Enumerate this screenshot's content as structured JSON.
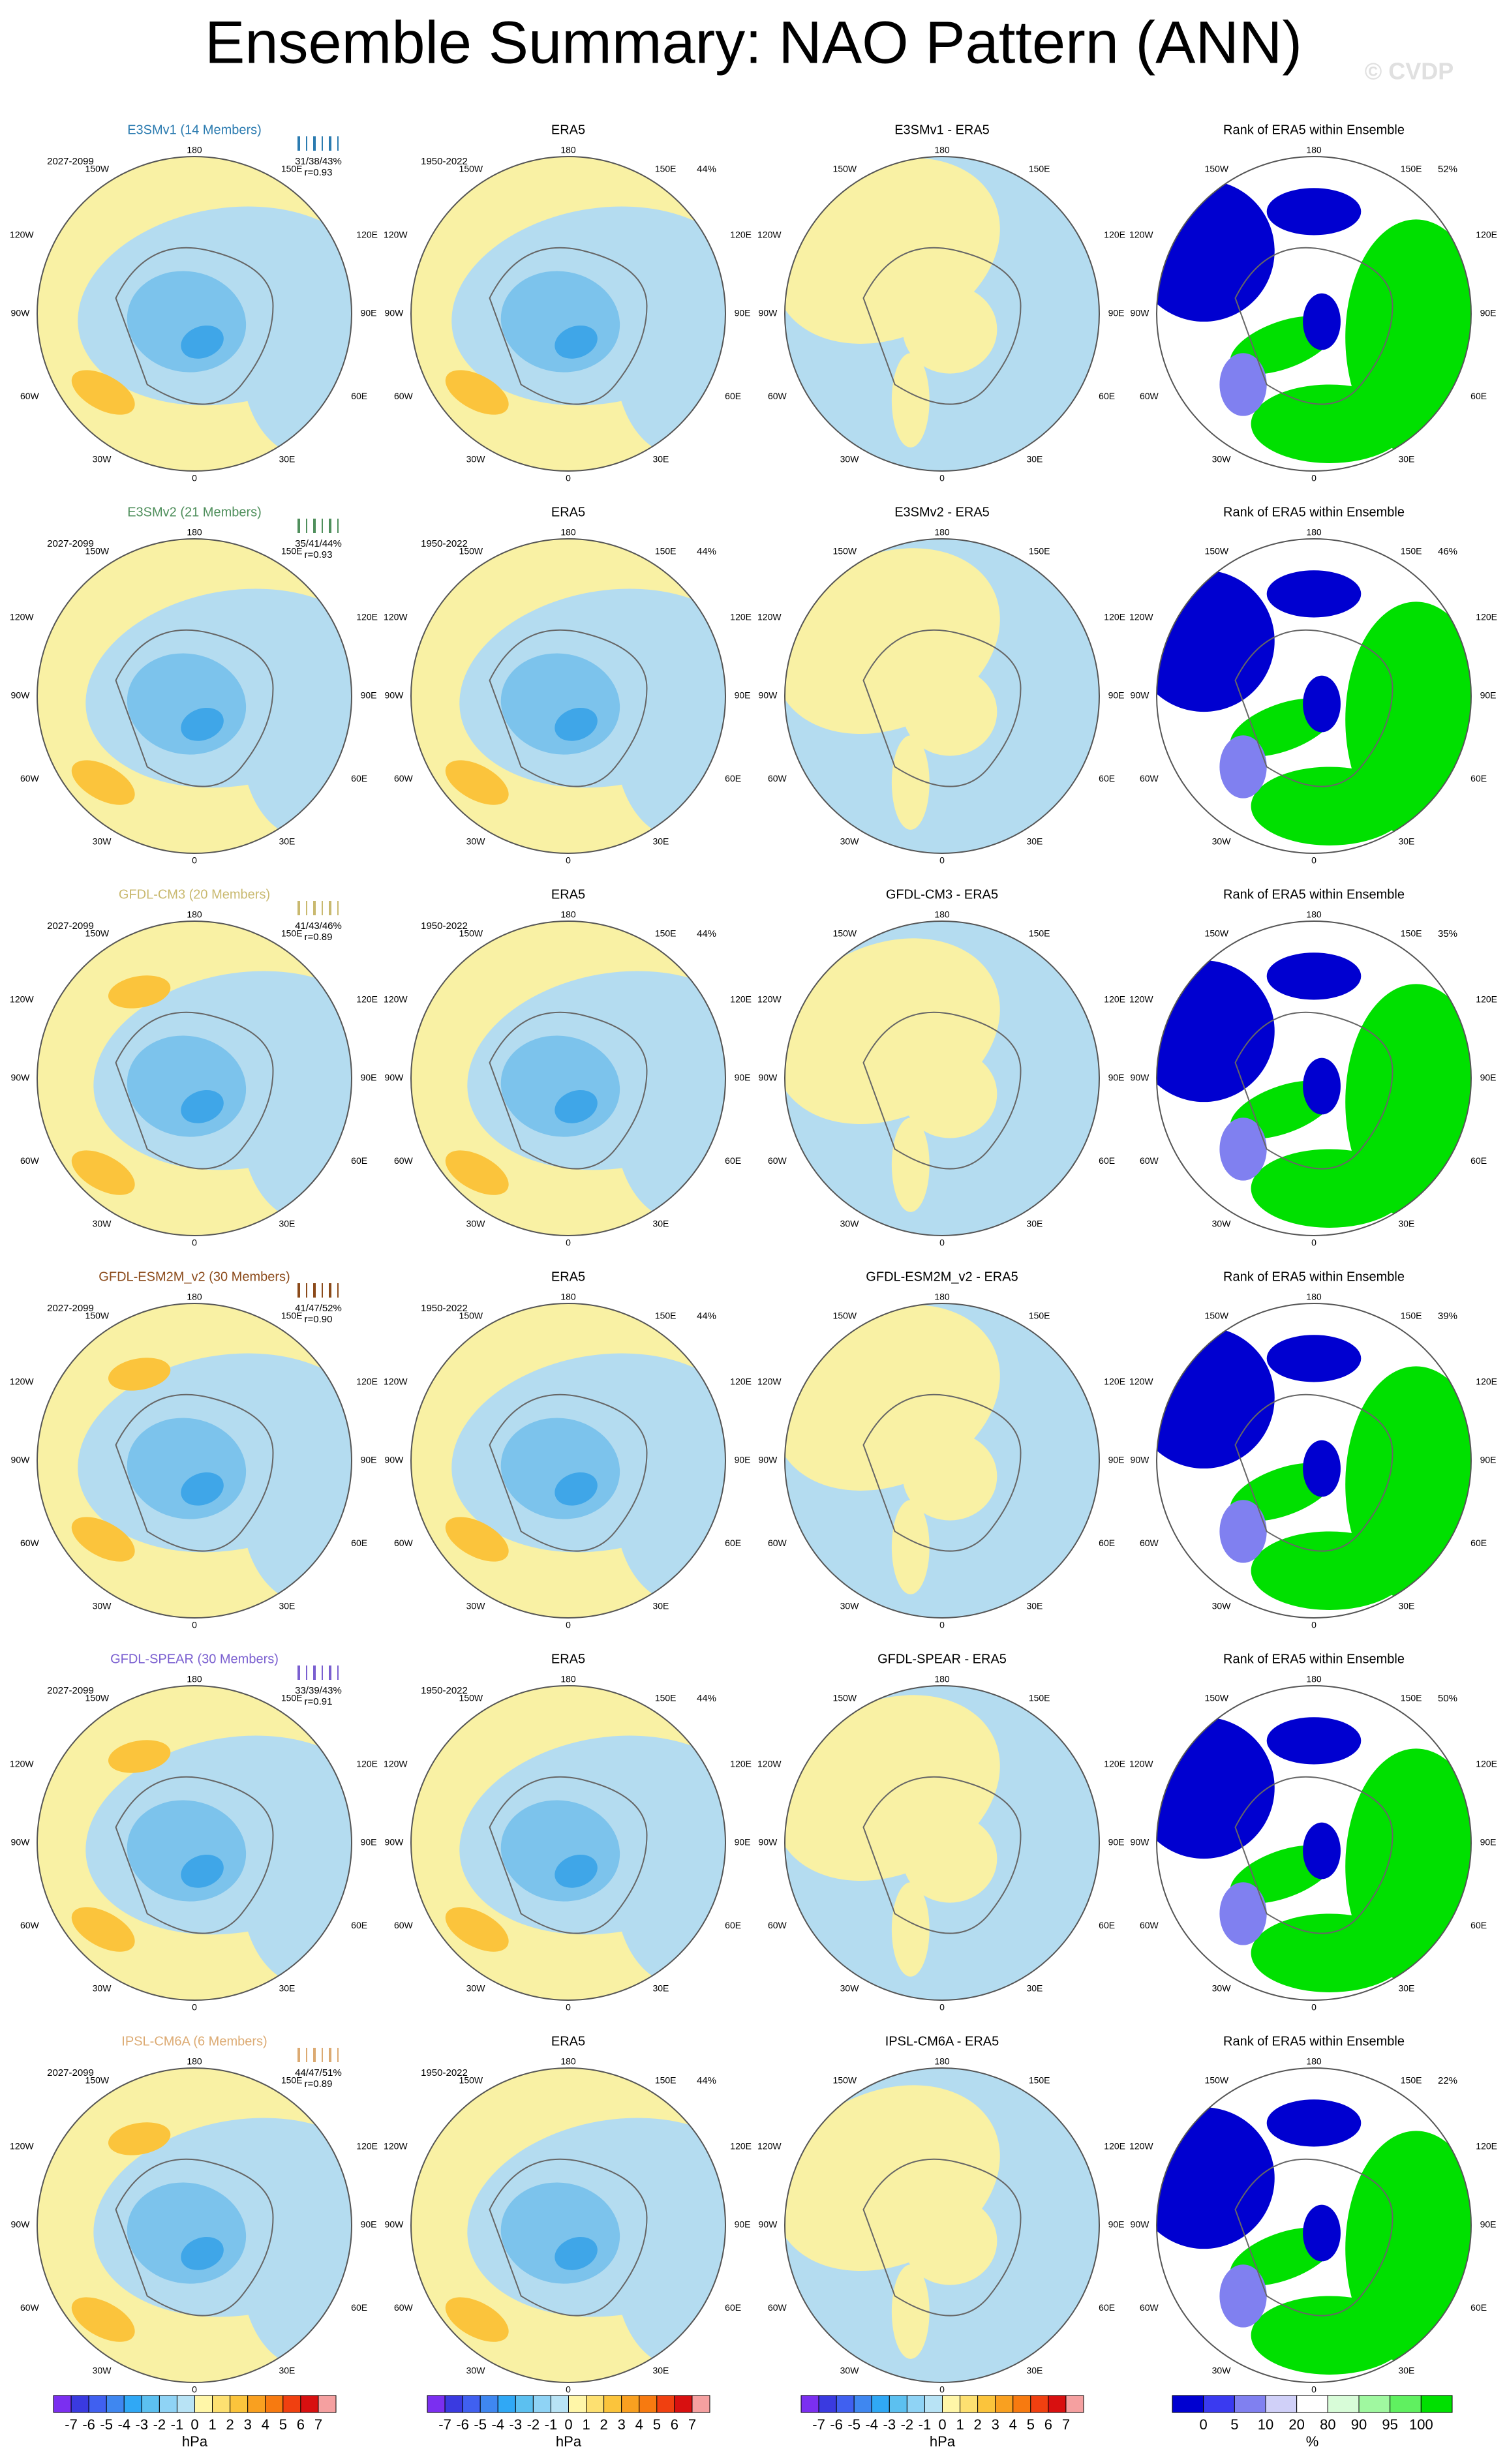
{
  "title": "Ensemble Summary: NAO Pattern (ANN)",
  "watermark": "© CVDP",
  "longitude_labels": [
    "180",
    "150E",
    "120E",
    "90E",
    "60E",
    "30E",
    "0",
    "30W",
    "60W",
    "90W",
    "120W",
    "150W"
  ],
  "rows": [
    {
      "model_title": "E3SMv1 (14 Members)",
      "model_color": "#2b7bb0",
      "model_years": "2027-2099",
      "stats": "31/38/43%",
      "r": "r=0.93",
      "era_title": "ERA5",
      "era_years": "1950-2022",
      "era_pct": "44%",
      "diff_title": "E3SMv1 - ERA5",
      "rank_title": "Rank of ERA5 within Ensemble",
      "rank_pct": "52%"
    },
    {
      "model_title": "E3SMv2 (21 Members)",
      "model_color": "#4f8f5c",
      "model_years": "2027-2099",
      "stats": "35/41/44%",
      "r": "r=0.93",
      "era_title": "ERA5",
      "era_years": "1950-2022",
      "era_pct": "44%",
      "diff_title": "E3SMv2 - ERA5",
      "rank_title": "Rank of ERA5 within Ensemble",
      "rank_pct": "46%"
    },
    {
      "model_title": "GFDL-CM3 (20 Members)",
      "model_color": "#c9b96f",
      "model_years": "2027-2099",
      "stats": "41/43/46%",
      "r": "r=0.89",
      "era_title": "ERA5",
      "era_years": "1950-2022",
      "era_pct": "44%",
      "diff_title": "GFDL-CM3 - ERA5",
      "rank_title": "Rank of ERA5 within Ensemble",
      "rank_pct": "35%"
    },
    {
      "model_title": "GFDL-ESM2M_v2 (30 Members)",
      "model_color": "#8b4a1a",
      "model_years": "2027-2099",
      "stats": "41/47/52%",
      "r": "r=0.90",
      "era_title": "ERA5",
      "era_years": "1950-2022",
      "era_pct": "44%",
      "diff_title": "GFDL-ESM2M_v2 - ERA5",
      "rank_title": "Rank of ERA5 within Ensemble",
      "rank_pct": "39%"
    },
    {
      "model_title": "GFDL-SPEAR (30 Members)",
      "model_color": "#7a5fd0",
      "model_years": "2027-2099",
      "stats": "33/39/43%",
      "r": "r=0.91",
      "era_title": "ERA5",
      "era_years": "1950-2022",
      "era_pct": "44%",
      "diff_title": "GFDL-SPEAR - ERA5",
      "rank_title": "Rank of ERA5 within Ensemble",
      "rank_pct": "50%"
    },
    {
      "model_title": "IPSL-CM6A (6 Members)",
      "model_color": "#dcaa72",
      "model_years": "2027-2099",
      "stats": "44/47/51%",
      "r": "r=0.89",
      "era_title": "ERA5",
      "era_years": "1950-2022",
      "era_pct": "44%",
      "diff_title": "IPSL-CM6A - ERA5",
      "rank_title": "Rank of ERA5 within Ensemble",
      "rank_pct": "22%"
    }
  ],
  "colorbars": {
    "hpa": {
      "labels": [
        "-7",
        "-6",
        "-5",
        "-4",
        "-3",
        "-2",
        "-1",
        "0",
        "1",
        "2",
        "3",
        "4",
        "5",
        "6",
        "7"
      ],
      "colors": [
        "#7b2ff0",
        "#3a3ae0",
        "#4060f0",
        "#3f87f0",
        "#30a8f5",
        "#5cc0f0",
        "#8fd3f5",
        "#b8e3f5",
        "#fff6a8",
        "#fde071",
        "#fbc43c",
        "#f9a020",
        "#f77a10",
        "#f04010",
        "#d81010",
        "#f5a0a0"
      ],
      "unit": "hPa"
    },
    "rank": {
      "labels": [
        "0",
        "5",
        "10",
        "20",
        "80",
        "90",
        "95",
        "100"
      ],
      "colors": [
        "#0000d0",
        "#3a3af0",
        "#8080f0",
        "#d0d0f8",
        "#ffffff",
        "#d8fcd8",
        "#a0f8a0",
        "#60f060",
        "#00e000"
      ],
      "unit": "%"
    }
  }
}
